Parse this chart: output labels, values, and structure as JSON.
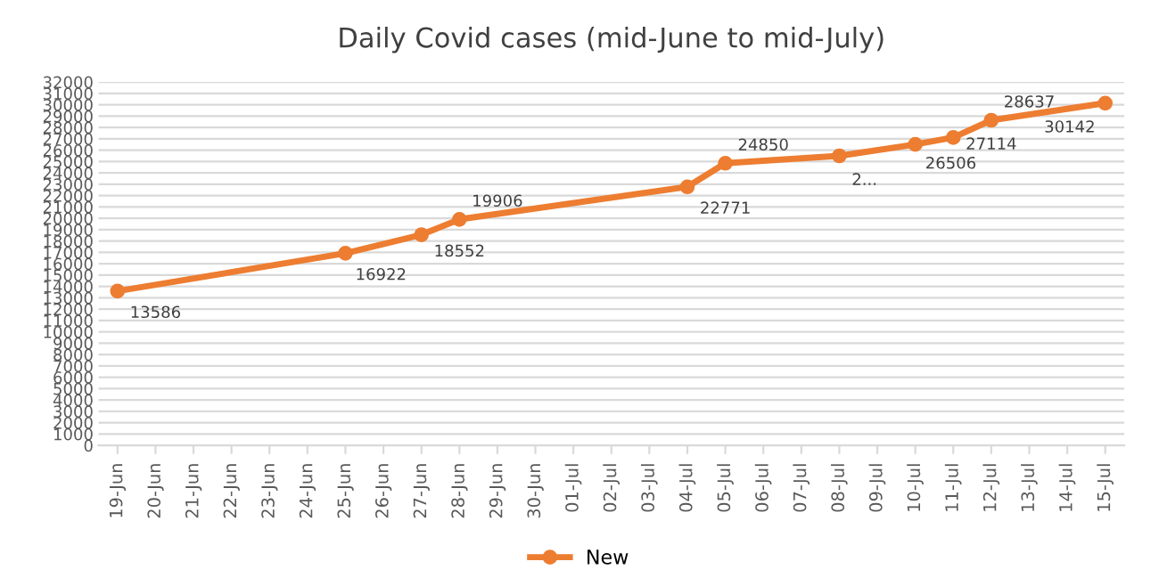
{
  "chart_data": {
    "type": "line",
    "title": "Daily Covid cases (mid-June to mid-July)",
    "categories": [
      "19-Jun",
      "20-Jun",
      "21-Jun",
      "22-Jun",
      "23-Jun",
      "24-Jun",
      "25-Jun",
      "26-Jun",
      "27-Jun",
      "28-Jun",
      "29-Jun",
      "30-Jun",
      "01-Jul",
      "02-Jul",
      "03-Jul",
      "04-Jul",
      "05-Jul",
      "06-Jul",
      "07-Jul",
      "08-Jul",
      "09-Jul",
      "10-Jul",
      "11-Jul",
      "12-Jul",
      "13-Jul",
      "14-Jul",
      "15-Jul"
    ],
    "series": [
      {
        "name": "New",
        "color": "#ed7d31",
        "values": [
          13586,
          null,
          null,
          null,
          null,
          null,
          16922,
          null,
          18552,
          19906,
          null,
          null,
          null,
          null,
          null,
          22771,
          24850,
          null,
          null,
          25500,
          null,
          26506,
          27114,
          28637,
          null,
          null,
          30142
        ],
        "value_labels": [
          "13586",
          null,
          null,
          null,
          null,
          null,
          "16922",
          null,
          "18552",
          "19906",
          null,
          null,
          null,
          null,
          null,
          "22771",
          "24850",
          null,
          null,
          "2...",
          null,
          "26506",
          "27114",
          "28637",
          null,
          null,
          "30142"
        ]
      }
    ],
    "ylim": [
      0,
      32000
    ],
    "yticks": [
      0,
      1000,
      2000,
      3000,
      4000,
      5000,
      6000,
      7000,
      8000,
      9000,
      10000,
      11000,
      12000,
      13000,
      14000,
      15000,
      16000,
      17000,
      18000,
      19000,
      20000,
      21000,
      22000,
      23000,
      24000,
      25000,
      26000,
      27000,
      28000,
      29000,
      30000,
      31000,
      32000
    ],
    "grid": "y",
    "legend": "bottom",
    "marker": "circle",
    "line_style": "solid"
  }
}
